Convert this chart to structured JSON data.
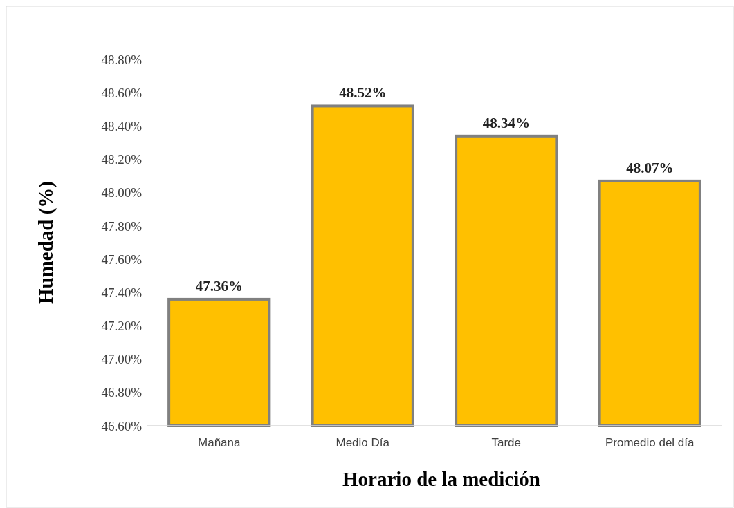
{
  "chart_data": {
    "type": "bar",
    "xlabel": "Horario de la medición",
    "ylabel": "Humedad (%)",
    "categories": [
      "Mañana",
      "Medio Día",
      "Tarde",
      "Promedio del día"
    ],
    "values": [
      47.36,
      48.52,
      48.34,
      48.07
    ],
    "value_labels": [
      "47.36%",
      "48.52%",
      "48.34%",
      "48.07%"
    ],
    "color": "#ffc000",
    "ylim": [
      46.6,
      48.8
    ],
    "yticks": [
      {
        "value": 46.6,
        "label": "46.60%"
      },
      {
        "value": 46.8,
        "label": "46.80%"
      },
      {
        "value": 47.0,
        "label": "47.00%"
      },
      {
        "value": 47.2,
        "label": "47.20%"
      },
      {
        "value": 47.4,
        "label": "47.40%"
      },
      {
        "value": 47.6,
        "label": "47.60%"
      },
      {
        "value": 47.8,
        "label": "47.80%"
      },
      {
        "value": 48.0,
        "label": "48.00%"
      },
      {
        "value": 48.2,
        "label": "48.20%"
      },
      {
        "value": 48.4,
        "label": "48.40%"
      },
      {
        "value": 48.6,
        "label": "48.60%"
      },
      {
        "value": 48.8,
        "label": "48.80%"
      }
    ],
    "grid": false
  }
}
